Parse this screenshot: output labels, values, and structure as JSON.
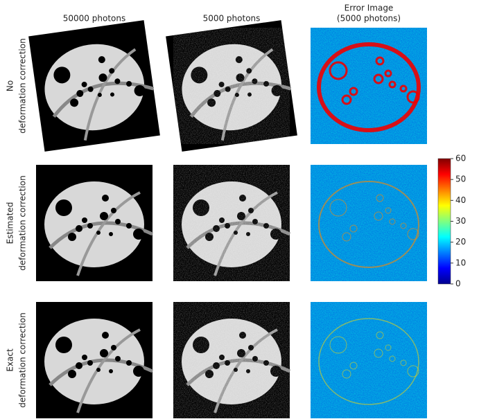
{
  "column_headers": [
    [
      "50000 photons"
    ],
    [
      "5000 photons"
    ],
    [
      "Error Image",
      "(5000 photons)"
    ]
  ],
  "row_labels": [
    [
      "No",
      "deformation correction"
    ],
    [
      "Estimated",
      "deformation correction"
    ],
    [
      "Exact",
      "deformation correction"
    ]
  ],
  "colorbar": {
    "ylim": [
      0,
      60
    ],
    "yticks": [
      0,
      10,
      20,
      30,
      40,
      50,
      60
    ]
  }
}
